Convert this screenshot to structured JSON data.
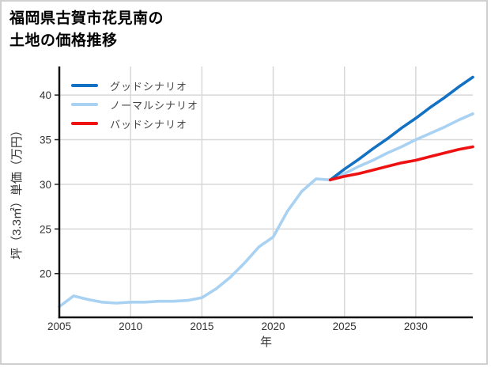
{
  "figure": {
    "title_line1": "福岡県古賀市花見南の",
    "title_line2": "土地の価格推移"
  },
  "chart_data": {
    "type": "line",
    "title": "福岡県古賀市花見南の土地の価格推移",
    "xlabel": "年",
    "ylabel": "坪（3.3㎡）単価（万円）",
    "xlim": [
      2005,
      2034
    ],
    "ylim": [
      15.1,
      43.2
    ],
    "xticks": [
      2005,
      2010,
      2015,
      2020,
      2025,
      2030
    ],
    "yticks": [
      20,
      25,
      30,
      35,
      40
    ],
    "grid": true,
    "legend_position": "upper-left",
    "series": [
      {
        "name": "グッドシナリオ",
        "key": "good-scenario",
        "color": "#1371c3",
        "x": [
          2024,
          2025,
          2026,
          2027,
          2028,
          2029,
          2030,
          2031,
          2032,
          2033,
          2034
        ],
        "values": [
          30.5,
          31.7,
          32.8,
          34.0,
          35.1,
          36.3,
          37.4,
          38.6,
          39.7,
          40.9,
          42.0
        ]
      },
      {
        "name": "ノーマルシナリオ",
        "key": "normal-scenario",
        "color": "#a9d1f2",
        "x": [
          2005,
          2006,
          2007,
          2008,
          2009,
          2010,
          2011,
          2012,
          2013,
          2014,
          2015,
          2016,
          2017,
          2018,
          2019,
          2020,
          2021,
          2022,
          2023,
          2024,
          2025,
          2026,
          2027,
          2028,
          2029,
          2030,
          2031,
          2032,
          2033,
          2034
        ],
        "values": [
          16.3,
          17.5,
          17.1,
          16.8,
          16.7,
          16.8,
          16.8,
          16.9,
          16.9,
          17.0,
          17.3,
          18.3,
          19.6,
          21.2,
          23.0,
          24.1,
          27.0,
          29.2,
          30.6,
          30.5,
          31.2,
          32.0,
          32.7,
          33.5,
          34.2,
          35.0,
          35.7,
          36.4,
          37.2,
          37.9
        ]
      },
      {
        "name": "バッドシナリオ",
        "key": "bad-scenario",
        "color": "#ee1111",
        "x": [
          2024,
          2025,
          2026,
          2027,
          2028,
          2029,
          2030,
          2031,
          2032,
          2033,
          2034
        ],
        "values": [
          30.5,
          30.9,
          31.2,
          31.6,
          32.0,
          32.4,
          32.7,
          33.1,
          33.5,
          33.9,
          34.2
        ]
      }
    ],
    "style": {
      "grid_color": "#d8d8d8",
      "spine_color": "#111111",
      "tick_label_color": "#333333",
      "axis_label_color": "#333333",
      "border_color": "#d0d0d0",
      "background": "#ffffff"
    }
  }
}
